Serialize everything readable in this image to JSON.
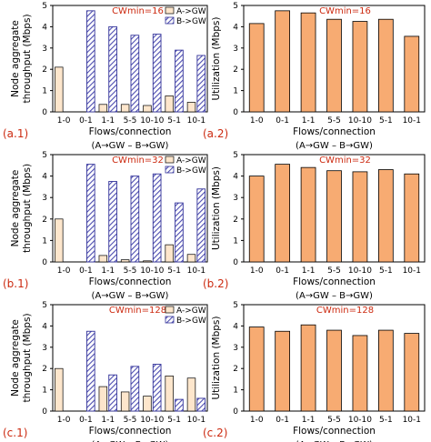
{
  "colors": {
    "bar_a": "#fde6cc",
    "bar_b_stroke": "#33339a",
    "bar_b_hatch": "#4d4db0",
    "bar_util": "#f7ab72",
    "accent": "#cc2a10"
  },
  "chart_data": [
    {
      "type": "bar",
      "panel_label": "(a.1)",
      "annotation": "CWmin=16",
      "categories": [
        "1-0",
        "0-1",
        "1-1",
        "5-5",
        "10-10",
        "5-1",
        "10-1"
      ],
      "series": [
        {
          "name": "A->GW",
          "values": [
            2.1,
            0,
            0.35,
            0.35,
            0.3,
            0.75,
            0.45
          ]
        },
        {
          "name": "B->GW",
          "values": [
            0,
            4.75,
            4.0,
            3.6,
            3.65,
            2.9,
            2.65
          ]
        }
      ],
      "ylabel": "Node aggregate throughput (Mbps)",
      "xlabel": "Flows/connection",
      "xlabel_sub": "(A→GW – B→GW)",
      "ylim": [
        0,
        5
      ],
      "yticks": [
        0,
        1,
        2,
        3,
        4,
        5
      ],
      "legend": "top-right"
    },
    {
      "type": "bar",
      "panel_label": "(a.2)",
      "annotation": "CWmin=16",
      "categories": [
        "1-0",
        "0-1",
        "1-1",
        "5-5",
        "10-10",
        "5-1",
        "10-1"
      ],
      "values": [
        4.15,
        4.75,
        4.65,
        4.35,
        4.25,
        4.35,
        3.55
      ],
      "ylabel": "Utilization (Mbps)",
      "xlabel": "Flows/connection",
      "xlabel_sub": "(A→GW – B→GW)",
      "ylim": [
        0,
        5
      ],
      "yticks": [
        0,
        1,
        2,
        3,
        4,
        5
      ]
    },
    {
      "type": "bar",
      "panel_label": "(b.1)",
      "annotation": "CWmin=32",
      "categories": [
        "1-0",
        "0-1",
        "1-1",
        "5-5",
        "10-10",
        "5-1",
        "10-1"
      ],
      "series": [
        {
          "name": "A->GW",
          "values": [
            2.0,
            0,
            0.3,
            0.1,
            0.05,
            0.8,
            0.35
          ]
        },
        {
          "name": "B->GW",
          "values": [
            0,
            4.55,
            3.75,
            4.0,
            4.1,
            2.75,
            3.4
          ]
        }
      ],
      "ylabel": "Node aggregate throughput (Mbps)",
      "xlabel": "Flows/connection",
      "xlabel_sub": "(A→GW – B→GW)",
      "ylim": [
        0,
        5
      ],
      "yticks": [
        0,
        1,
        2,
        3,
        4,
        5
      ],
      "legend": "top-right"
    },
    {
      "type": "bar",
      "panel_label": "(b.2)",
      "annotation": "CWmin=32",
      "categories": [
        "1-0",
        "0-1",
        "1-1",
        "5-5",
        "10-10",
        "5-1",
        "10-1"
      ],
      "values": [
        4.0,
        4.55,
        4.4,
        4.25,
        4.2,
        4.3,
        4.1
      ],
      "ylabel": "Utilization (Mbps)",
      "xlabel": "Flows/connection",
      "xlabel_sub": "(A→GW – B→GW)",
      "ylim": [
        0,
        5
      ],
      "yticks": [
        0,
        1,
        2,
        3,
        4,
        5
      ]
    },
    {
      "type": "bar",
      "panel_label": "(c.1)",
      "annotation": "CWmin=128",
      "categories": [
        "1-0",
        "0-1",
        "1-1",
        "5-5",
        "10-10",
        "5-1",
        "10-1"
      ],
      "series": [
        {
          "name": "A->GW",
          "values": [
            2.0,
            0,
            1.15,
            0.9,
            0.7,
            1.65,
            1.55
          ]
        },
        {
          "name": "B->GW",
          "values": [
            0,
            3.75,
            1.7,
            2.1,
            2.2,
            0.55,
            0.6
          ]
        }
      ],
      "ylabel": "Node aggregate throughput (Mbps)",
      "xlabel": "Flows/connection",
      "xlabel_sub": "(A→GW – B→GW)",
      "ylim": [
        0,
        5
      ],
      "yticks": [
        0,
        1,
        2,
        3,
        4,
        5
      ],
      "legend": "top-right"
    },
    {
      "type": "bar",
      "panel_label": "(c.2)",
      "annotation": "CWmin=128",
      "categories": [
        "1-0",
        "0-1",
        "1-1",
        "5-5",
        "10-10",
        "5-1",
        "10-1"
      ],
      "values": [
        3.95,
        3.75,
        4.05,
        3.8,
        3.55,
        3.8,
        3.65
      ],
      "ylabel": "Utilization (Mbps)",
      "xlabel": "Flows/connection",
      "xlabel_sub": "(A→GW – B→GW)",
      "ylim": [
        0,
        5
      ],
      "yticks": [
        0,
        1,
        2,
        3,
        4,
        5
      ]
    }
  ]
}
